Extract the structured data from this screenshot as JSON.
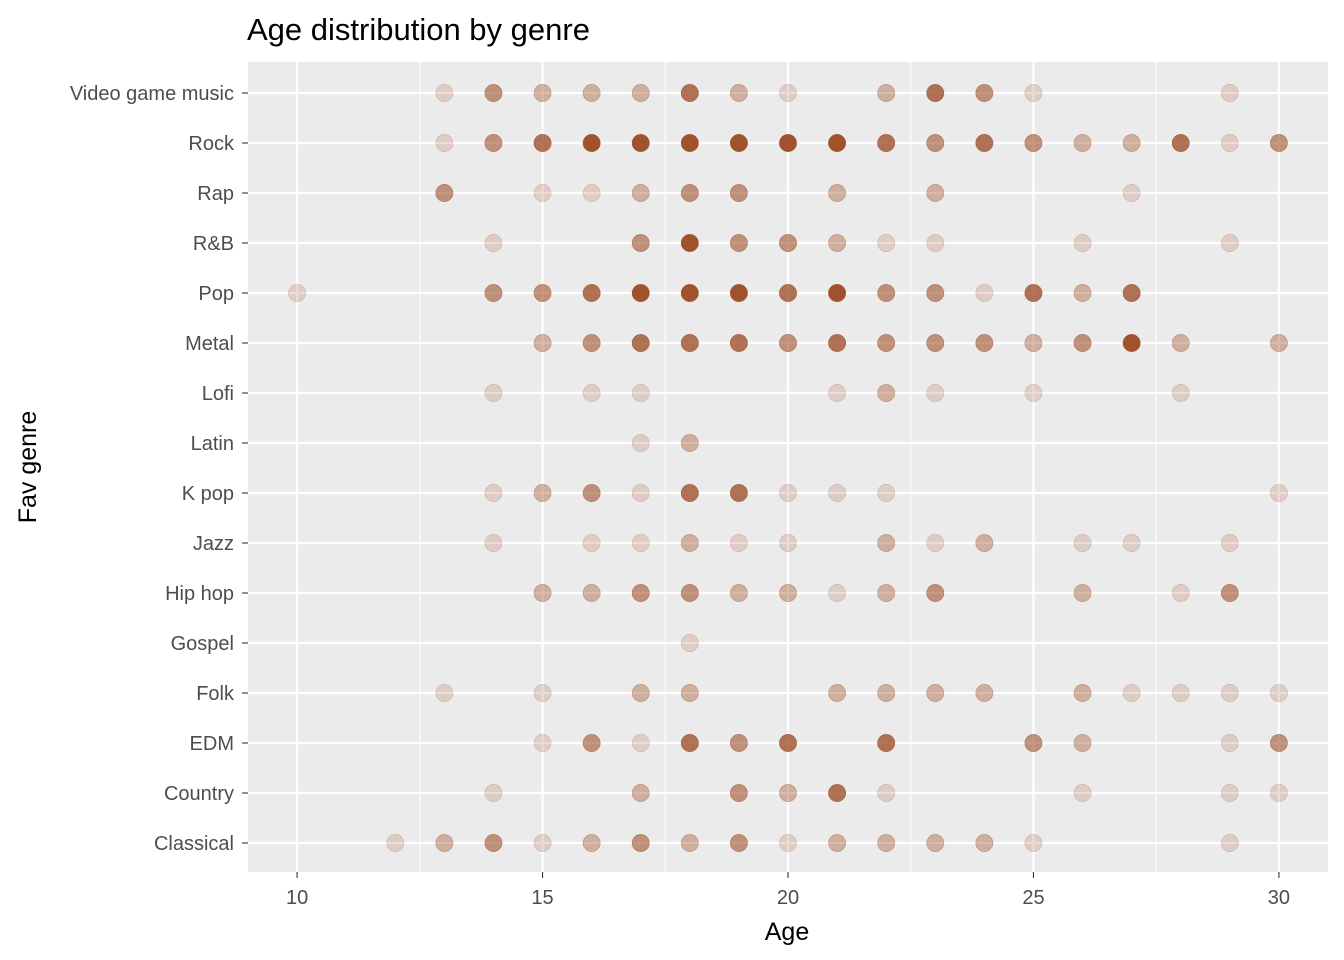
{
  "chart_data": {
    "type": "scatter",
    "title": "Age distribution by genre",
    "xlabel": "Age",
    "ylabel": "Fav genre",
    "xlim": [
      9,
      31
    ],
    "x_ticks": [
      10,
      15,
      20,
      25,
      30
    ],
    "grid": true,
    "legend": "none",
    "point_color": "#A0522D",
    "panel_background": "#EBEBEB",
    "grid_color": "#FFFFFF",
    "categories": [
      "Classical",
      "Country",
      "EDM",
      "Folk",
      "Gospel",
      "Hip hop",
      "Jazz",
      "K pop",
      "Latin",
      "Lofi",
      "Metal",
      "Pop",
      "R&B",
      "Rap",
      "Rock",
      "Video game music"
    ],
    "series": [
      {
        "category": "Video game music",
        "points": [
          [
            13,
            1
          ],
          [
            14,
            3
          ],
          [
            15,
            2
          ],
          [
            16,
            2
          ],
          [
            17,
            2
          ],
          [
            18,
            4
          ],
          [
            19,
            2
          ],
          [
            20,
            1
          ],
          [
            22,
            2
          ],
          [
            23,
            4
          ],
          [
            24,
            3
          ],
          [
            25,
            1
          ],
          [
            29,
            1
          ]
        ]
      },
      {
        "category": "Rock",
        "points": [
          [
            13,
            1
          ],
          [
            14,
            3
          ],
          [
            15,
            4
          ],
          [
            16,
            5
          ],
          [
            17,
            5
          ],
          [
            18,
            5
          ],
          [
            19,
            5
          ],
          [
            20,
            5
          ],
          [
            21,
            5
          ],
          [
            22,
            4
          ],
          [
            23,
            3
          ],
          [
            24,
            4
          ],
          [
            25,
            3
          ],
          [
            26,
            2
          ],
          [
            27,
            2
          ],
          [
            28,
            4
          ],
          [
            29,
            1
          ],
          [
            30,
            3
          ]
        ]
      },
      {
        "category": "Rap",
        "points": [
          [
            13,
            3
          ],
          [
            15,
            1
          ],
          [
            16,
            1
          ],
          [
            17,
            2
          ],
          [
            18,
            3
          ],
          [
            19,
            3
          ],
          [
            21,
            2
          ],
          [
            23,
            2
          ],
          [
            27,
            1
          ]
        ]
      },
      {
        "category": "R&B",
        "points": [
          [
            14,
            1
          ],
          [
            17,
            3
          ],
          [
            18,
            5
          ],
          [
            19,
            3
          ],
          [
            20,
            3
          ],
          [
            21,
            2
          ],
          [
            22,
            1
          ],
          [
            23,
            1
          ],
          [
            26,
            1
          ],
          [
            29,
            1
          ]
        ]
      },
      {
        "category": "Pop",
        "points": [
          [
            10,
            1
          ],
          [
            14,
            3
          ],
          [
            15,
            3
          ],
          [
            16,
            4
          ],
          [
            17,
            5
          ],
          [
            18,
            5
          ],
          [
            19,
            5
          ],
          [
            20,
            4
          ],
          [
            21,
            5
          ],
          [
            22,
            3
          ],
          [
            23,
            3
          ],
          [
            24,
            1
          ],
          [
            25,
            4
          ],
          [
            26,
            2
          ],
          [
            27,
            4
          ]
        ]
      },
      {
        "category": "Metal",
        "points": [
          [
            15,
            2
          ],
          [
            16,
            3
          ],
          [
            17,
            4
          ],
          [
            18,
            4
          ],
          [
            19,
            4
          ],
          [
            20,
            3
          ],
          [
            21,
            4
          ],
          [
            22,
            3
          ],
          [
            23,
            3
          ],
          [
            24,
            3
          ],
          [
            25,
            2
          ],
          [
            26,
            3
          ],
          [
            27,
            5
          ],
          [
            28,
            2
          ],
          [
            30,
            2
          ]
        ]
      },
      {
        "category": "Lofi",
        "points": [
          [
            14,
            1
          ],
          [
            16,
            1
          ],
          [
            17,
            1
          ],
          [
            21,
            1
          ],
          [
            22,
            2
          ],
          [
            23,
            1
          ],
          [
            25,
            1
          ],
          [
            28,
            1
          ]
        ]
      },
      {
        "category": "Latin",
        "points": [
          [
            17,
            1
          ],
          [
            18,
            2
          ]
        ]
      },
      {
        "category": "K pop",
        "points": [
          [
            14,
            1
          ],
          [
            15,
            2
          ],
          [
            16,
            3
          ],
          [
            17,
            1
          ],
          [
            18,
            4
          ],
          [
            19,
            4
          ],
          [
            20,
            1
          ],
          [
            21,
            1
          ],
          [
            22,
            1
          ],
          [
            30,
            1
          ]
        ]
      },
      {
        "category": "Jazz",
        "points": [
          [
            14,
            1
          ],
          [
            16,
            1
          ],
          [
            17,
            1
          ],
          [
            18,
            2
          ],
          [
            19,
            1
          ],
          [
            20,
            1
          ],
          [
            22,
            2
          ],
          [
            23,
            1
          ],
          [
            24,
            2
          ],
          [
            26,
            1
          ],
          [
            27,
            1
          ],
          [
            29,
            1
          ]
        ]
      },
      {
        "category": "Hip hop",
        "points": [
          [
            15,
            2
          ],
          [
            16,
            2
          ],
          [
            17,
            3
          ],
          [
            18,
            3
          ],
          [
            19,
            2
          ],
          [
            20,
            2
          ],
          [
            21,
            1
          ],
          [
            22,
            2
          ],
          [
            23,
            3
          ],
          [
            26,
            2
          ],
          [
            28,
            1
          ],
          [
            29,
            3
          ]
        ]
      },
      {
        "category": "Gospel",
        "points": [
          [
            18,
            1
          ]
        ]
      },
      {
        "category": "Folk",
        "points": [
          [
            13,
            1
          ],
          [
            15,
            1
          ],
          [
            17,
            2
          ],
          [
            18,
            2
          ],
          [
            21,
            2
          ],
          [
            22,
            2
          ],
          [
            23,
            2
          ],
          [
            24,
            2
          ],
          [
            26,
            2
          ],
          [
            27,
            1
          ],
          [
            28,
            1
          ],
          [
            29,
            1
          ],
          [
            30,
            1
          ]
        ]
      },
      {
        "category": "EDM",
        "points": [
          [
            15,
            1
          ],
          [
            16,
            3
          ],
          [
            17,
            1
          ],
          [
            18,
            4
          ],
          [
            19,
            3
          ],
          [
            20,
            4
          ],
          [
            22,
            4
          ],
          [
            25,
            3
          ],
          [
            26,
            2
          ],
          [
            29,
            1
          ],
          [
            30,
            3
          ]
        ]
      },
      {
        "category": "Country",
        "points": [
          [
            14,
            1
          ],
          [
            17,
            2
          ],
          [
            19,
            3
          ],
          [
            20,
            2
          ],
          [
            21,
            4
          ],
          [
            22,
            1
          ],
          [
            26,
            1
          ],
          [
            29,
            1
          ],
          [
            30,
            1
          ]
        ]
      },
      {
        "category": "Classical",
        "points": [
          [
            12,
            1
          ],
          [
            13,
            2
          ],
          [
            14,
            3
          ],
          [
            15,
            1
          ],
          [
            16,
            2
          ],
          [
            17,
            3
          ],
          [
            18,
            2
          ],
          [
            19,
            3
          ],
          [
            20,
            1
          ],
          [
            21,
            2
          ],
          [
            22,
            2
          ],
          [
            23,
            2
          ],
          [
            24,
            2
          ],
          [
            25,
            1
          ],
          [
            29,
            1
          ]
        ]
      }
    ]
  }
}
